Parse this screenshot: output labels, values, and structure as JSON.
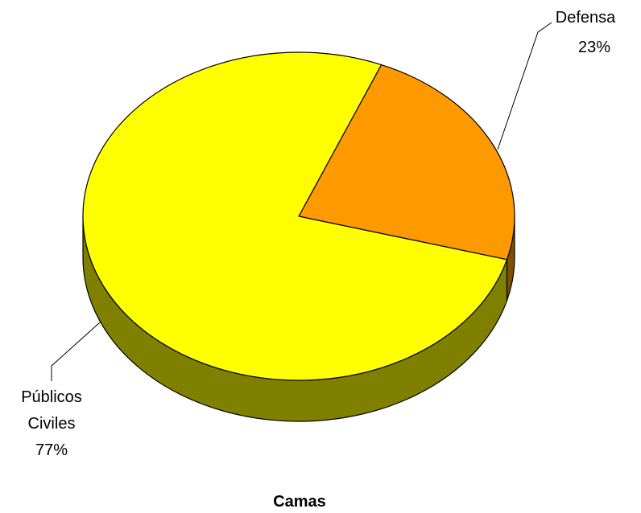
{
  "chart_data": {
    "type": "pie",
    "style": "3d",
    "title": "Camas",
    "categories": [
      "Defensa",
      "Públicos Civiles"
    ],
    "values": [
      23,
      77
    ],
    "labels": [
      [
        "Defensa",
        "23%"
      ],
      [
        "Públicos",
        "Civiles",
        "77%"
      ]
    ],
    "colors": [
      "#FF9900",
      "#FFFF00"
    ],
    "side_colors": [
      "#805000",
      "#808000"
    ],
    "legend": "none"
  }
}
